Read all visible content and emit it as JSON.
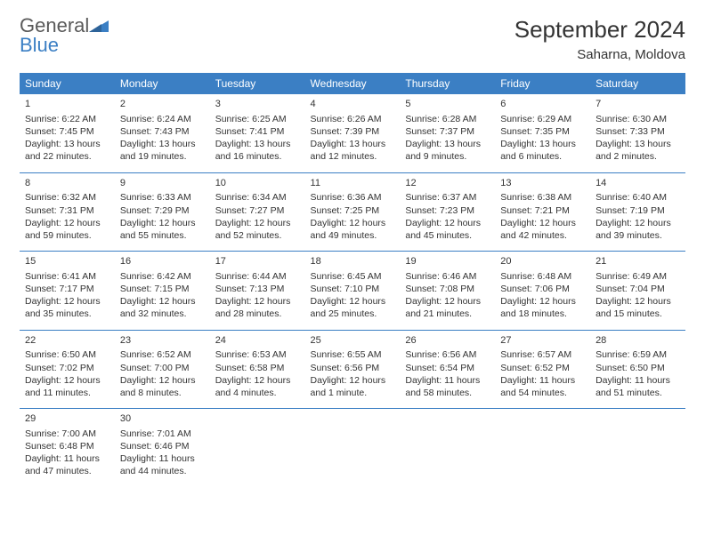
{
  "brand": {
    "name1": "General",
    "name2": "Blue"
  },
  "title": "September 2024",
  "location": "Saharna, Moldova",
  "colors": {
    "header_bg": "#3b7fc4",
    "header_text": "#ffffff",
    "border": "#3b7fc4",
    "text": "#333333",
    "brand_gray": "#5a5a5a",
    "brand_blue": "#3b7fc4"
  },
  "dayHeaders": [
    "Sunday",
    "Monday",
    "Tuesday",
    "Wednesday",
    "Thursday",
    "Friday",
    "Saturday"
  ],
  "weeks": [
    [
      {
        "n": "1",
        "sr": "6:22 AM",
        "ss": "7:45 PM",
        "dl": "13 hours and 22 minutes."
      },
      {
        "n": "2",
        "sr": "6:24 AM",
        "ss": "7:43 PM",
        "dl": "13 hours and 19 minutes."
      },
      {
        "n": "3",
        "sr": "6:25 AM",
        "ss": "7:41 PM",
        "dl": "13 hours and 16 minutes."
      },
      {
        "n": "4",
        "sr": "6:26 AM",
        "ss": "7:39 PM",
        "dl": "13 hours and 12 minutes."
      },
      {
        "n": "5",
        "sr": "6:28 AM",
        "ss": "7:37 PM",
        "dl": "13 hours and 9 minutes."
      },
      {
        "n": "6",
        "sr": "6:29 AM",
        "ss": "7:35 PM",
        "dl": "13 hours and 6 minutes."
      },
      {
        "n": "7",
        "sr": "6:30 AM",
        "ss": "7:33 PM",
        "dl": "13 hours and 2 minutes."
      }
    ],
    [
      {
        "n": "8",
        "sr": "6:32 AM",
        "ss": "7:31 PM",
        "dl": "12 hours and 59 minutes."
      },
      {
        "n": "9",
        "sr": "6:33 AM",
        "ss": "7:29 PM",
        "dl": "12 hours and 55 minutes."
      },
      {
        "n": "10",
        "sr": "6:34 AM",
        "ss": "7:27 PM",
        "dl": "12 hours and 52 minutes."
      },
      {
        "n": "11",
        "sr": "6:36 AM",
        "ss": "7:25 PM",
        "dl": "12 hours and 49 minutes."
      },
      {
        "n": "12",
        "sr": "6:37 AM",
        "ss": "7:23 PM",
        "dl": "12 hours and 45 minutes."
      },
      {
        "n": "13",
        "sr": "6:38 AM",
        "ss": "7:21 PM",
        "dl": "12 hours and 42 minutes."
      },
      {
        "n": "14",
        "sr": "6:40 AM",
        "ss": "7:19 PM",
        "dl": "12 hours and 39 minutes."
      }
    ],
    [
      {
        "n": "15",
        "sr": "6:41 AM",
        "ss": "7:17 PM",
        "dl": "12 hours and 35 minutes."
      },
      {
        "n": "16",
        "sr": "6:42 AM",
        "ss": "7:15 PM",
        "dl": "12 hours and 32 minutes."
      },
      {
        "n": "17",
        "sr": "6:44 AM",
        "ss": "7:13 PM",
        "dl": "12 hours and 28 minutes."
      },
      {
        "n": "18",
        "sr": "6:45 AM",
        "ss": "7:10 PM",
        "dl": "12 hours and 25 minutes."
      },
      {
        "n": "19",
        "sr": "6:46 AM",
        "ss": "7:08 PM",
        "dl": "12 hours and 21 minutes."
      },
      {
        "n": "20",
        "sr": "6:48 AM",
        "ss": "7:06 PM",
        "dl": "12 hours and 18 minutes."
      },
      {
        "n": "21",
        "sr": "6:49 AM",
        "ss": "7:04 PM",
        "dl": "12 hours and 15 minutes."
      }
    ],
    [
      {
        "n": "22",
        "sr": "6:50 AM",
        "ss": "7:02 PM",
        "dl": "12 hours and 11 minutes."
      },
      {
        "n": "23",
        "sr": "6:52 AM",
        "ss": "7:00 PM",
        "dl": "12 hours and 8 minutes."
      },
      {
        "n": "24",
        "sr": "6:53 AM",
        "ss": "6:58 PM",
        "dl": "12 hours and 4 minutes."
      },
      {
        "n": "25",
        "sr": "6:55 AM",
        "ss": "6:56 PM",
        "dl": "12 hours and 1 minute."
      },
      {
        "n": "26",
        "sr": "6:56 AM",
        "ss": "6:54 PM",
        "dl": "11 hours and 58 minutes."
      },
      {
        "n": "27",
        "sr": "6:57 AM",
        "ss": "6:52 PM",
        "dl": "11 hours and 54 minutes."
      },
      {
        "n": "28",
        "sr": "6:59 AM",
        "ss": "6:50 PM",
        "dl": "11 hours and 51 minutes."
      }
    ],
    [
      {
        "n": "29",
        "sr": "7:00 AM",
        "ss": "6:48 PM",
        "dl": "11 hours and 47 minutes."
      },
      {
        "n": "30",
        "sr": "7:01 AM",
        "ss": "6:46 PM",
        "dl": "11 hours and 44 minutes."
      },
      null,
      null,
      null,
      null,
      null
    ]
  ],
  "labels": {
    "sunrise": "Sunrise: ",
    "sunset": "Sunset: ",
    "daylight": "Daylight: "
  }
}
